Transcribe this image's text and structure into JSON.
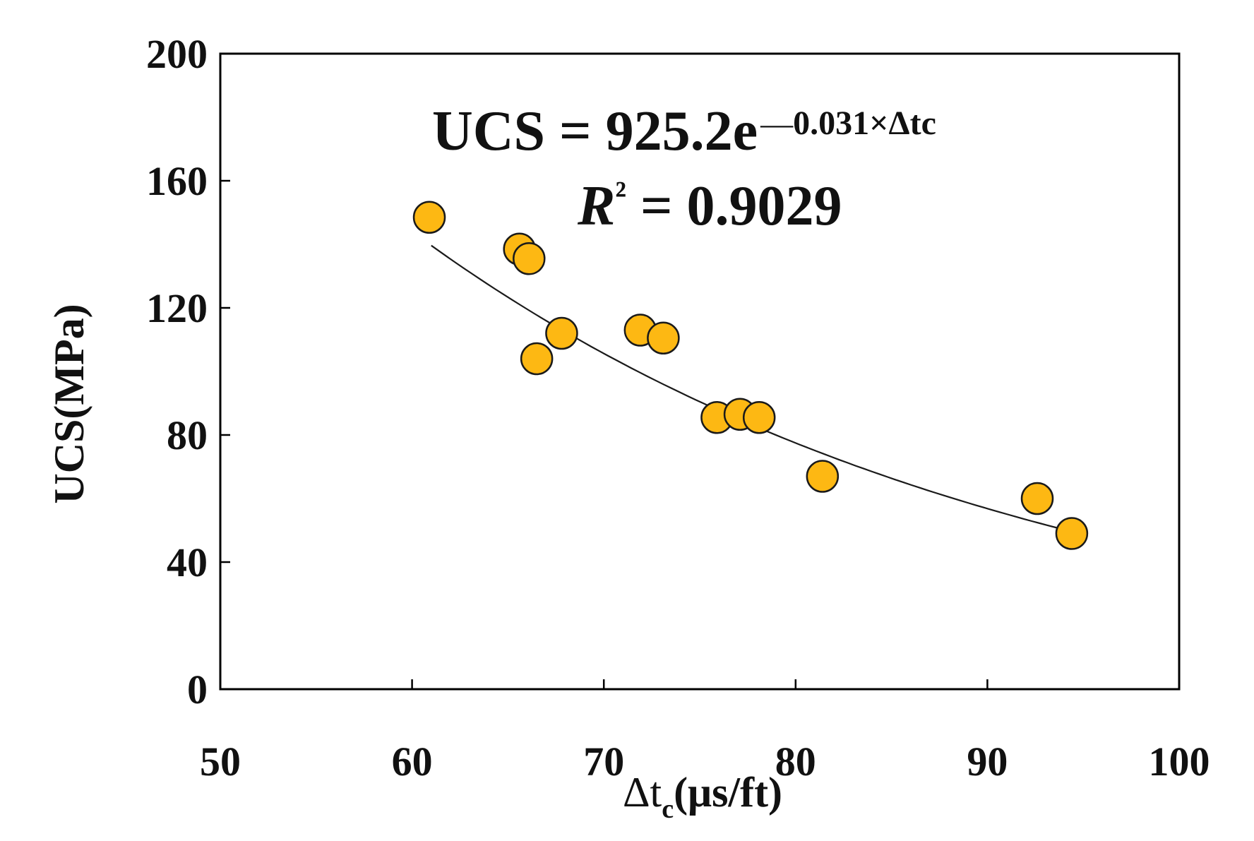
{
  "chart_data": {
    "type": "scatter",
    "title": "",
    "xlabel": {
      "symbol": "Δt",
      "sub": "c",
      "unit": "(μs/ft)"
    },
    "ylabel": "UCS(MPa)",
    "xlim": [
      50,
      100
    ],
    "ylim": [
      0,
      200
    ],
    "xticks": [
      50,
      60,
      70,
      80,
      90,
      100
    ],
    "yticks": [
      0,
      40,
      80,
      120,
      160,
      200
    ],
    "grid": false,
    "legend": "none",
    "colors": {
      "marker_fill": "#FDB813",
      "marker_edge": "#1a1a1a",
      "fit_line": "#1a1a1a",
      "axes": "#000000"
    },
    "points": [
      {
        "x": 60.9,
        "y": 148.5
      },
      {
        "x": 65.6,
        "y": 138.5
      },
      {
        "x": 66.1,
        "y": 135.5
      },
      {
        "x": 67.8,
        "y": 112.0
      },
      {
        "x": 66.5,
        "y": 104.0
      },
      {
        "x": 71.9,
        "y": 113.0
      },
      {
        "x": 73.1,
        "y": 110.5
      },
      {
        "x": 75.9,
        "y": 85.5
      },
      {
        "x": 77.1,
        "y": 86.5
      },
      {
        "x": 78.1,
        "y": 85.5
      },
      {
        "x": 81.4,
        "y": 67.0
      },
      {
        "x": 92.6,
        "y": 60.0
      },
      {
        "x": 94.4,
        "y": 49.0
      }
    ],
    "fit": {
      "type": "exponential",
      "a": 925.2,
      "b": -0.031,
      "x_range": [
        61,
        94.4
      ]
    },
    "annotations": {
      "equation_main": "UCS = 925.2e",
      "equation_dash": "—",
      "equation_exp": "0.031×Δtc",
      "r2_symbol": "R",
      "r2_sup": "²",
      "r2_value": " = 0.9029"
    }
  }
}
